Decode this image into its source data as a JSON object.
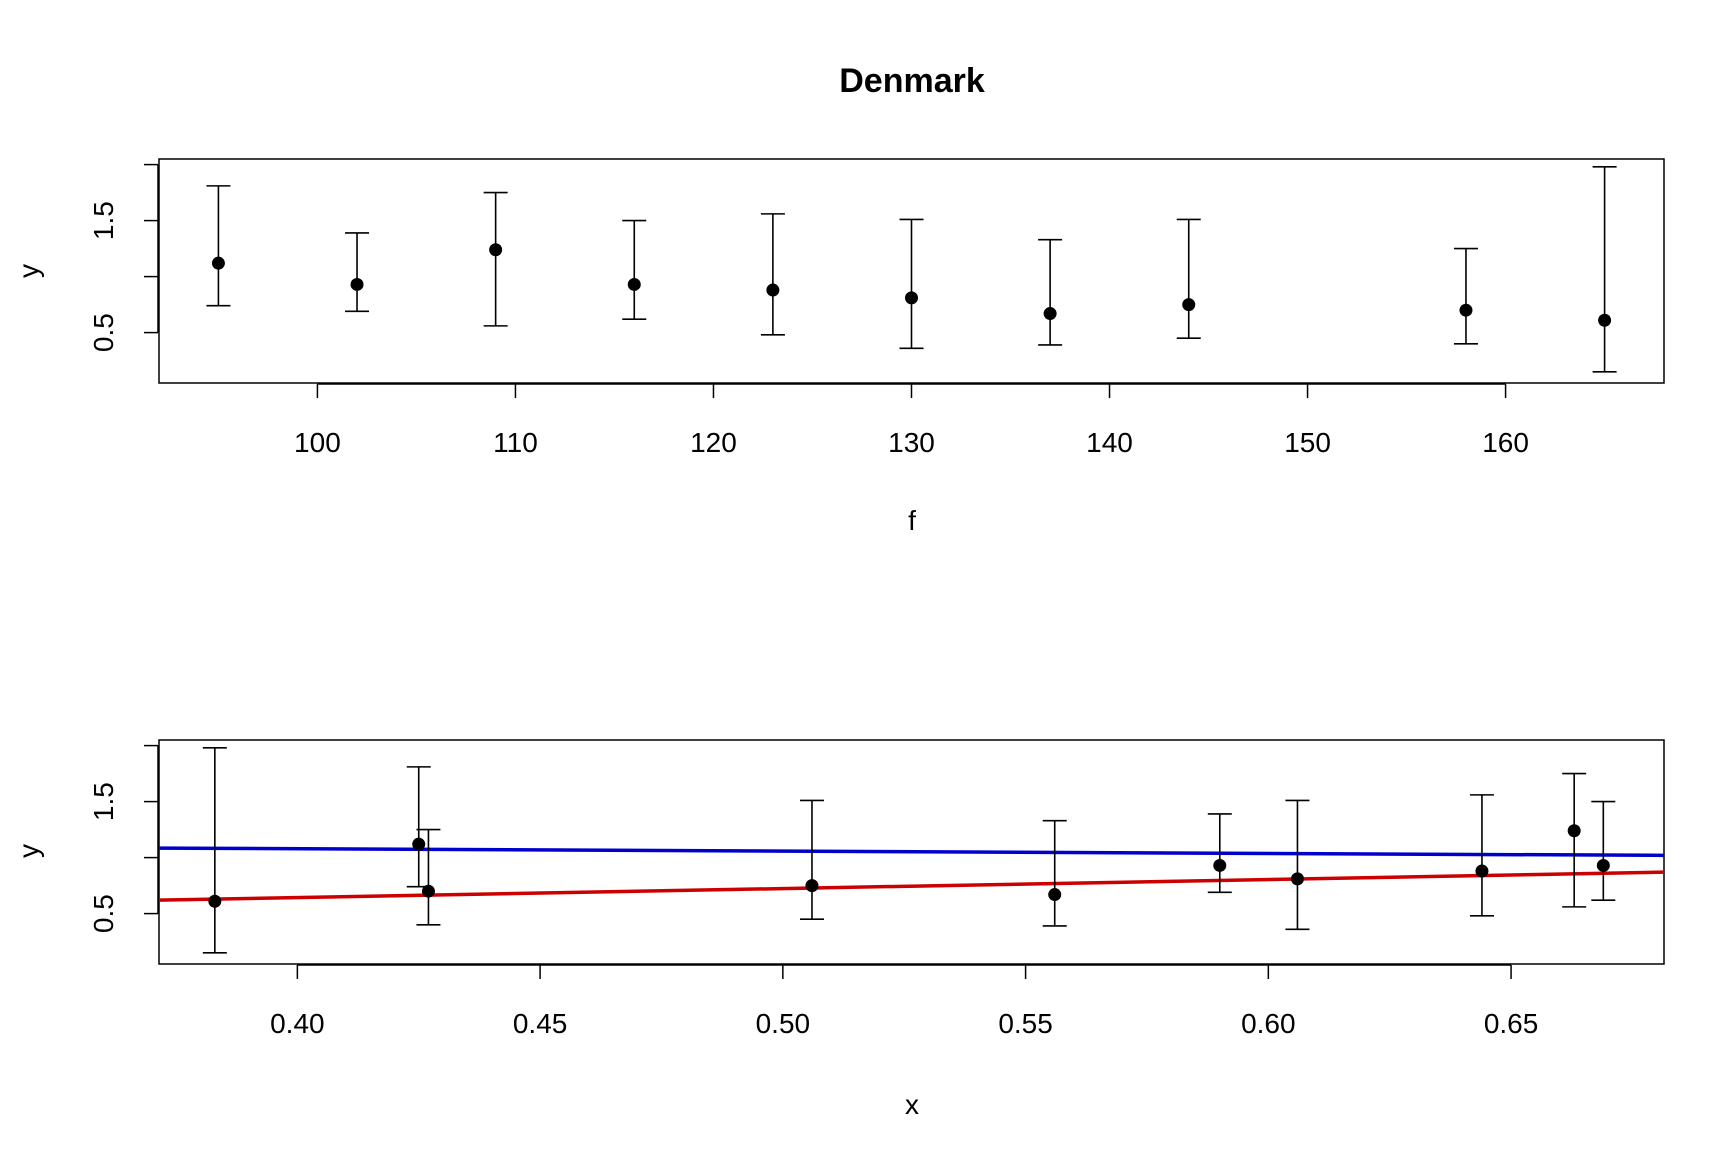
{
  "chart_data": [
    {
      "type": "scatter",
      "title": "Denmark",
      "xlabel": "f",
      "ylabel": "y",
      "xlim": [
        92,
        168
      ],
      "ylim": [
        0.05,
        2.05
      ],
      "xticks": [
        100,
        110,
        120,
        130,
        140,
        150,
        160
      ],
      "xtick_labels": [
        "100",
        "110",
        "120",
        "130",
        "140",
        "150",
        "160"
      ],
      "yticks_drawn": [
        0.5,
        1.0,
        1.5,
        2.0
      ],
      "ytick_labels": [
        "0.5",
        "1.5"
      ],
      "grid": false,
      "legend": "none",
      "marker_color": "#000000",
      "points": [
        {
          "x": 95,
          "y": 1.12,
          "lo": 0.74,
          "hi": 1.81
        },
        {
          "x": 102,
          "y": 0.93,
          "lo": 0.69,
          "hi": 1.39
        },
        {
          "x": 109,
          "y": 1.24,
          "lo": 0.56,
          "hi": 1.75
        },
        {
          "x": 116,
          "y": 0.93,
          "lo": 0.62,
          "hi": 1.5
        },
        {
          "x": 123,
          "y": 0.88,
          "lo": 0.48,
          "hi": 1.56
        },
        {
          "x": 130,
          "y": 0.81,
          "lo": 0.36,
          "hi": 1.51
        },
        {
          "x": 137,
          "y": 0.67,
          "lo": 0.39,
          "hi": 1.33
        },
        {
          "x": 144,
          "y": 0.75,
          "lo": 0.45,
          "hi": 1.51
        },
        {
          "x": 158,
          "y": 0.7,
          "lo": 0.4,
          "hi": 1.25
        },
        {
          "x": 165,
          "y": 0.61,
          "lo": 0.15,
          "hi": 1.98
        }
      ]
    },
    {
      "type": "scatter",
      "title": "",
      "xlabel": "x",
      "ylabel": "y",
      "xlim": [
        0.3715,
        0.6815
      ],
      "ylim": [
        0.05,
        2.05
      ],
      "xticks": [
        0.4,
        0.45,
        0.5,
        0.55,
        0.6,
        0.65
      ],
      "xtick_labels": [
        "0.40",
        "0.45",
        "0.50",
        "0.55",
        "0.60",
        "0.65"
      ],
      "yticks_drawn": [
        0.5,
        1.0,
        1.5,
        2.0
      ],
      "ytick_labels": [
        "0.5",
        "1.5"
      ],
      "grid": false,
      "legend": "none",
      "marker_color": "#000000",
      "points": [
        {
          "x": 0.383,
          "y": 0.61,
          "lo": 0.15,
          "hi": 1.98
        },
        {
          "x": 0.425,
          "y": 1.12,
          "lo": 0.74,
          "hi": 1.81
        },
        {
          "x": 0.427,
          "y": 0.7,
          "lo": 0.4,
          "hi": 1.25
        },
        {
          "x": 0.506,
          "y": 0.75,
          "lo": 0.45,
          "hi": 1.51
        },
        {
          "x": 0.556,
          "y": 0.67,
          "lo": 0.39,
          "hi": 1.33
        },
        {
          "x": 0.59,
          "y": 0.93,
          "lo": 0.69,
          "hi": 1.39
        },
        {
          "x": 0.606,
          "y": 0.81,
          "lo": 0.36,
          "hi": 1.51
        },
        {
          "x": 0.644,
          "y": 0.88,
          "lo": 0.48,
          "hi": 1.56
        },
        {
          "x": 0.663,
          "y": 1.24,
          "lo": 0.56,
          "hi": 1.75
        },
        {
          "x": 0.669,
          "y": 0.93,
          "lo": 0.62,
          "hi": 1.5
        }
      ],
      "lines": [
        {
          "color": "#0000cc",
          "x": [
            0.3715,
            0.6815
          ],
          "y": [
            1.085,
            1.02
          ]
        },
        {
          "color": "#cc0000",
          "x": [
            0.3715,
            0.6815
          ],
          "y": [
            0.62,
            0.87
          ]
        }
      ]
    }
  ]
}
